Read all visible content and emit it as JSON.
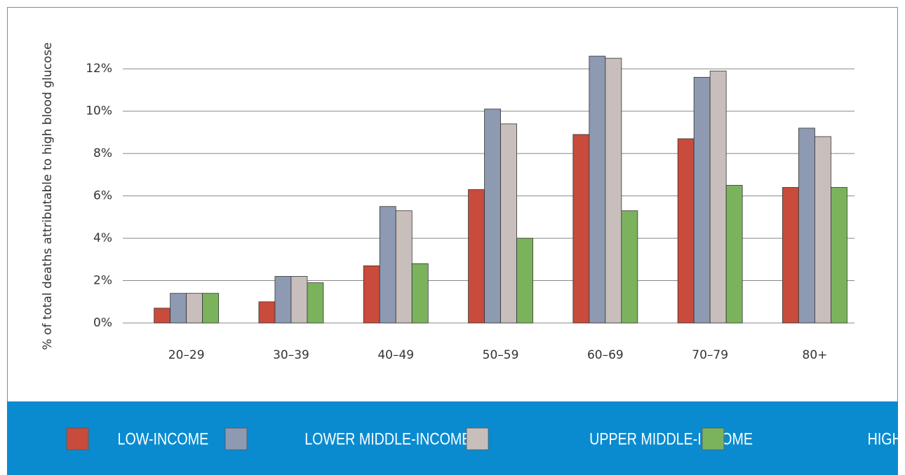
{
  "chart_data": {
    "type": "bar",
    "y_label": "% of total deaths  attributable to high blood glucose",
    "categories": [
      "20–29",
      "30–39",
      "40–49",
      "50–59",
      "60–69",
      "70–79",
      "80+"
    ],
    "series": [
      {
        "name": "LOW-INCOME",
        "color": "#c84b3b",
        "values": [
          0.7,
          1.0,
          2.7,
          6.3,
          8.9,
          8.7,
          6.4
        ]
      },
      {
        "name": "LOWER MIDDLE-INCOME",
        "color": "#8e9ab2",
        "values": [
          1.4,
          2.2,
          5.5,
          10.1,
          12.6,
          11.6,
          9.2
        ]
      },
      {
        "name": "UPPER MIDDLE-INCOME",
        "color": "#c8bfbc",
        "values": [
          1.4,
          2.2,
          5.3,
          9.4,
          12.5,
          11.9,
          8.8
        ]
      },
      {
        "name": "HIGH-INCOME",
        "color": "#7bb35d",
        "values": [
          1.4,
          1.9,
          2.8,
          4.0,
          5.3,
          6.5,
          6.4
        ]
      }
    ],
    "ylim": [
      0,
      13
    ],
    "yticks": [
      {
        "value": 0,
        "label": "0%"
      },
      {
        "value": 2,
        "label": "2%"
      },
      {
        "value": 4,
        "label": "4%"
      },
      {
        "value": 6,
        "label": "6%"
      },
      {
        "value": 8,
        "label": "8%"
      },
      {
        "value": 10,
        "label": "10%"
      },
      {
        "value": 12,
        "label": "12%"
      }
    ],
    "grid": true,
    "legend": "bottom"
  }
}
